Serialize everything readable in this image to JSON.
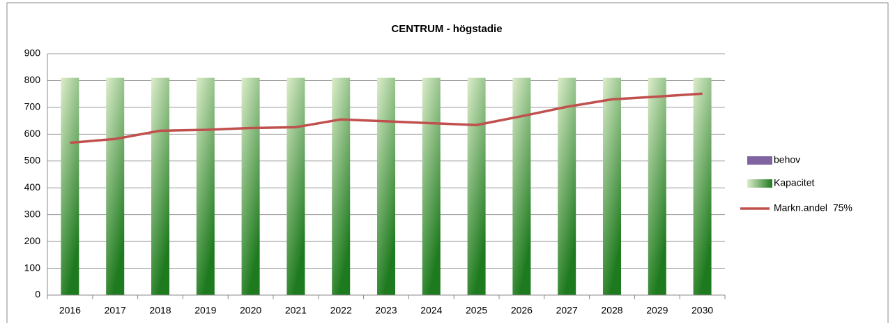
{
  "chart_data": {
    "type": "bar_line",
    "title": "CENTRUM - högstadie",
    "categories": [
      "2016",
      "2017",
      "2018",
      "2019",
      "2020",
      "2021",
      "2022",
      "2023",
      "2024",
      "2025",
      "2026",
      "2027",
      "2028",
      "2029",
      "2030"
    ],
    "series": [
      {
        "name": "behov",
        "color": "#8064a2",
        "type": "bar",
        "values": [
          null,
          null,
          null,
          null,
          null,
          null,
          null,
          null,
          null,
          null,
          null,
          null,
          null,
          null,
          null
        ]
      },
      {
        "name": "Kapacitet",
        "color": "#1e7a1e",
        "type": "bar",
        "values": [
          810,
          810,
          810,
          810,
          810,
          810,
          810,
          810,
          810,
          810,
          810,
          810,
          810,
          810,
          810
        ]
      },
      {
        "name": "Markn.andel  75%",
        "color": "#c0504d",
        "type": "line",
        "values": [
          568,
          582,
          613,
          616,
          623,
          626,
          655,
          648,
          641,
          634,
          667,
          702,
          730,
          740,
          751
        ]
      }
    ],
    "ylim": [
      0,
      900
    ],
    "yticks": [
      0,
      100,
      200,
      300,
      400,
      500,
      600,
      700,
      800,
      900
    ],
    "grid": true,
    "legend": "right"
  }
}
